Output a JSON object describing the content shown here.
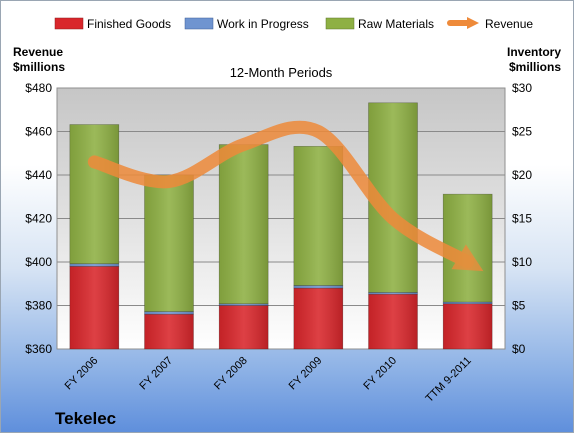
{
  "company": "Tekelec",
  "chart_data": {
    "type": "bar",
    "title": "12-Month Periods",
    "categories": [
      "FY 2006",
      "FY 2007",
      "FY 2008",
      "FY 2009",
      "FY 2010",
      "TTM 9-2011"
    ],
    "left_axis": {
      "label_line1": "Revenue",
      "label_line2": "$millions",
      "ylim": [
        360,
        480
      ],
      "ticks": [
        "$360",
        "$380",
        "$400",
        "$420",
        "$440",
        "$460",
        "$480"
      ]
    },
    "right_axis": {
      "label_line1": "Inventory",
      "label_line2": "$millions",
      "ylim": [
        0,
        30
      ],
      "ticks": [
        "$0",
        "$5",
        "$10",
        "$15",
        "$20",
        "$25",
        "$30"
      ]
    },
    "stacked": true,
    "series": [
      {
        "name": "Finished Goods",
        "color": "#d9262b",
        "axis": "right",
        "values": [
          9.5,
          4.0,
          5.0,
          7.0,
          6.3,
          5.2
        ]
      },
      {
        "name": "Work in Progress",
        "color": "#6f94d0",
        "axis": "right",
        "values": [
          0.3,
          0.3,
          0.2,
          0.3,
          0.2,
          0.2
        ]
      },
      {
        "name": "Raw Materials",
        "color": "#8eb043",
        "axis": "right",
        "values": [
          16.0,
          15.7,
          18.3,
          16.0,
          21.8,
          12.4
        ]
      },
      {
        "name": "Revenue",
        "color": "#ee8a3a",
        "axis": "left",
        "type": "line",
        "values": [
          446,
          437,
          454,
          460,
          420,
          400
        ]
      }
    ],
    "grid": true,
    "legend": "top"
  }
}
